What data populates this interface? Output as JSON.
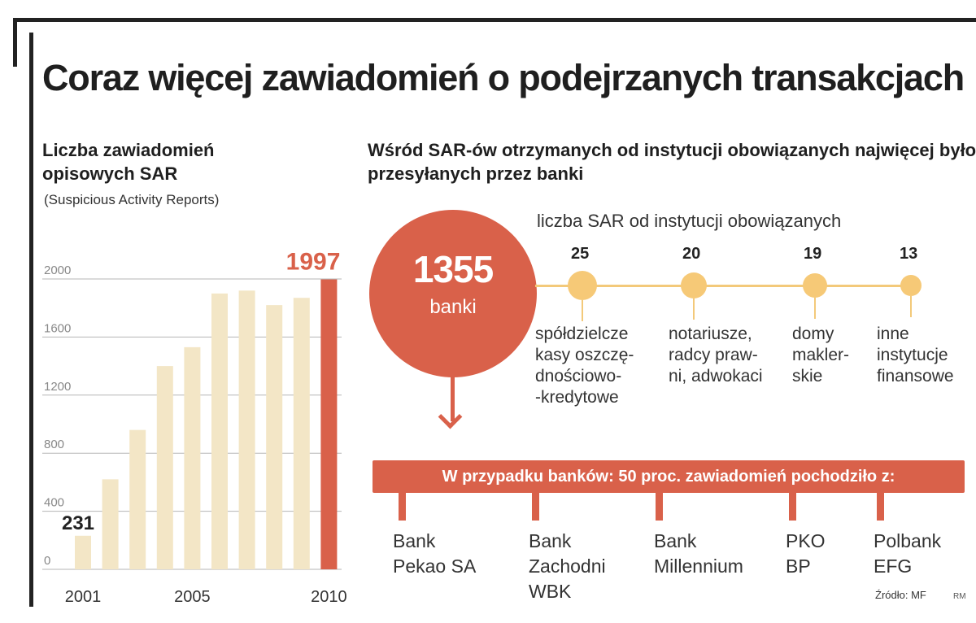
{
  "title": "Coraz więcej zawiadomień o podejrzanych transakcjach",
  "left_panel": {
    "title": "Liczba zawiadomień opisowych SAR",
    "subtitle": "(Suspicious Activity Reports)"
  },
  "colors": {
    "bar_default": "#f3e6c6",
    "bar_highlight": "#d9614a",
    "accent": "#d9614a",
    "timeline": "#f3c97a"
  },
  "chart_data": [
    {
      "type": "bar",
      "title": "Liczba zawiadomień opisowych SAR",
      "subtitle": "(Suspicious Activity Reports)",
      "categories": [
        "2001",
        "2002",
        "2003",
        "2004",
        "2005",
        "2006",
        "2007",
        "2008",
        "2009",
        "2010"
      ],
      "values": [
        231,
        620,
        960,
        1400,
        1530,
        1900,
        1920,
        1820,
        1870,
        1997
      ],
      "labeled_points": [
        {
          "category": "2001",
          "label": "231"
        },
        {
          "category": "2010",
          "label": "1997"
        }
      ],
      "x_tick_labels": [
        "2001",
        "2005",
        "2010"
      ],
      "y_ticks": [
        {
          "value": 0,
          "label": "0"
        },
        {
          "value": 400,
          "label": "400"
        },
        {
          "value": 800,
          "label": "800"
        },
        {
          "value": 1200,
          "label": "1200"
        },
        {
          "value": 1600,
          "label": "1600"
        },
        {
          "value": 2000,
          "label": "2000"
        }
      ],
      "ylim": [
        0,
        2000
      ],
      "highlight_category": "2010",
      "grid": true
    },
    {
      "type": "table",
      "title": "Wśród SAR-ów otrzymanych od instytucji obowiązanych najwięcej było przesyłanych przez banki",
      "main": {
        "value": "1355",
        "label": "banki"
      },
      "subtitle": "liczba SAR od instytucji obowiązanych",
      "items": [
        {
          "value": "25",
          "label": "spółdzielcze\nkasy oszczę-\ndnościowo-\n-kredytowe"
        },
        {
          "value": "20",
          "label": "notariusze,\nradcy praw-\nni, adwokaci"
        },
        {
          "value": "19",
          "label": "domy\nmakler-\nskie"
        },
        {
          "value": "13",
          "label": "inne\ninstytucje\nfinansowe"
        }
      ]
    },
    {
      "type": "table",
      "title": "W przypadku banków: 50 proc. zawiadomień pochodziło z:",
      "items": [
        "Bank\nPekao SA",
        "Bank\nZachodni\nWBK",
        "Bank\nMillennium",
        "PKO\nBP",
        "Polbank\nEFG"
      ]
    }
  ],
  "source": "Źródło: MF",
  "author": "RM"
}
